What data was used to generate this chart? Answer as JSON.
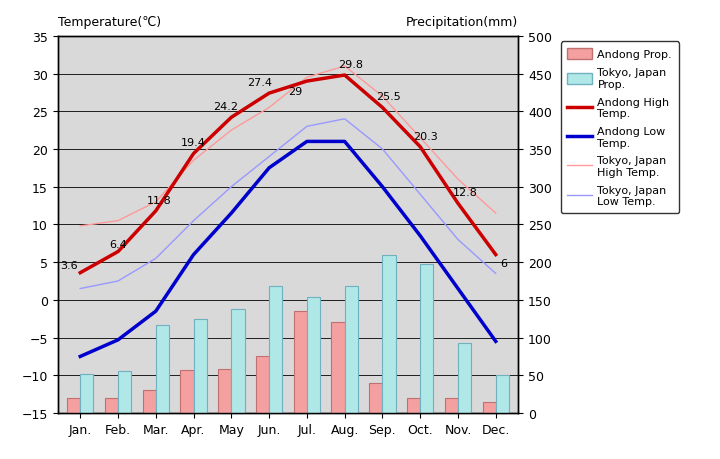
{
  "months": [
    "Jan.",
    "Feb.",
    "Mar.",
    "Apr.",
    "May",
    "Jun.",
    "Jul.",
    "Aug.",
    "Sep.",
    "Oct.",
    "Nov.",
    "Dec."
  ],
  "andong_high": [
    3.6,
    6.4,
    11.8,
    19.4,
    24.2,
    27.4,
    29.0,
    29.8,
    25.5,
    20.3,
    12.8,
    6.0
  ],
  "andong_low": [
    -7.5,
    -5.3,
    -1.5,
    6.0,
    11.5,
    17.5,
    21.0,
    21.0,
    15.0,
    8.5,
    1.5,
    -5.5
  ],
  "tokyo_high": [
    9.8,
    10.5,
    13.0,
    18.5,
    22.5,
    25.5,
    29.5,
    31.0,
    27.0,
    21.5,
    16.0,
    11.5
  ],
  "tokyo_low": [
    1.5,
    2.5,
    5.5,
    10.5,
    15.0,
    19.0,
    23.0,
    24.0,
    20.0,
    14.0,
    8.0,
    3.5
  ],
  "andong_prcp_mm": [
    20,
    20,
    30,
    57,
    58,
    75,
    135,
    120,
    40,
    20,
    20,
    15
  ],
  "tokyo_prcp_mm": [
    52,
    56,
    117,
    124,
    138,
    168,
    154,
    168,
    210,
    198,
    93,
    51
  ],
  "andong_high_labels": [
    "3.6",
    "6.4",
    "11.8",
    "19.4",
    "24.2",
    "27.4",
    "29",
    "29.8",
    "25.5",
    "20.3",
    "12.8",
    "6"
  ],
  "ylim_left": [
    -15,
    35
  ],
  "ylim_right": [
    0,
    500
  ],
  "bg_color": "#d9d9d9",
  "andong_high_color": "#cc0000",
  "andong_low_color": "#0000cc",
  "tokyo_high_color": "#ff9999",
  "tokyo_low_color": "#9999ff",
  "andong_prcp_color": "#f4a0a0",
  "andong_prcp_edge": "#c07070",
  "tokyo_prcp_color": "#b0e8e8",
  "tokyo_prcp_edge": "#70b0c0",
  "title_left": "Temperature(℃)",
  "title_right": "Precipitation(mm)",
  "yticks_left": [
    -15,
    -10,
    -5,
    0,
    5,
    10,
    15,
    20,
    25,
    30,
    35
  ],
  "yticks_right": [
    0,
    50,
    100,
    150,
    200,
    250,
    300,
    350,
    400,
    450,
    500
  ]
}
